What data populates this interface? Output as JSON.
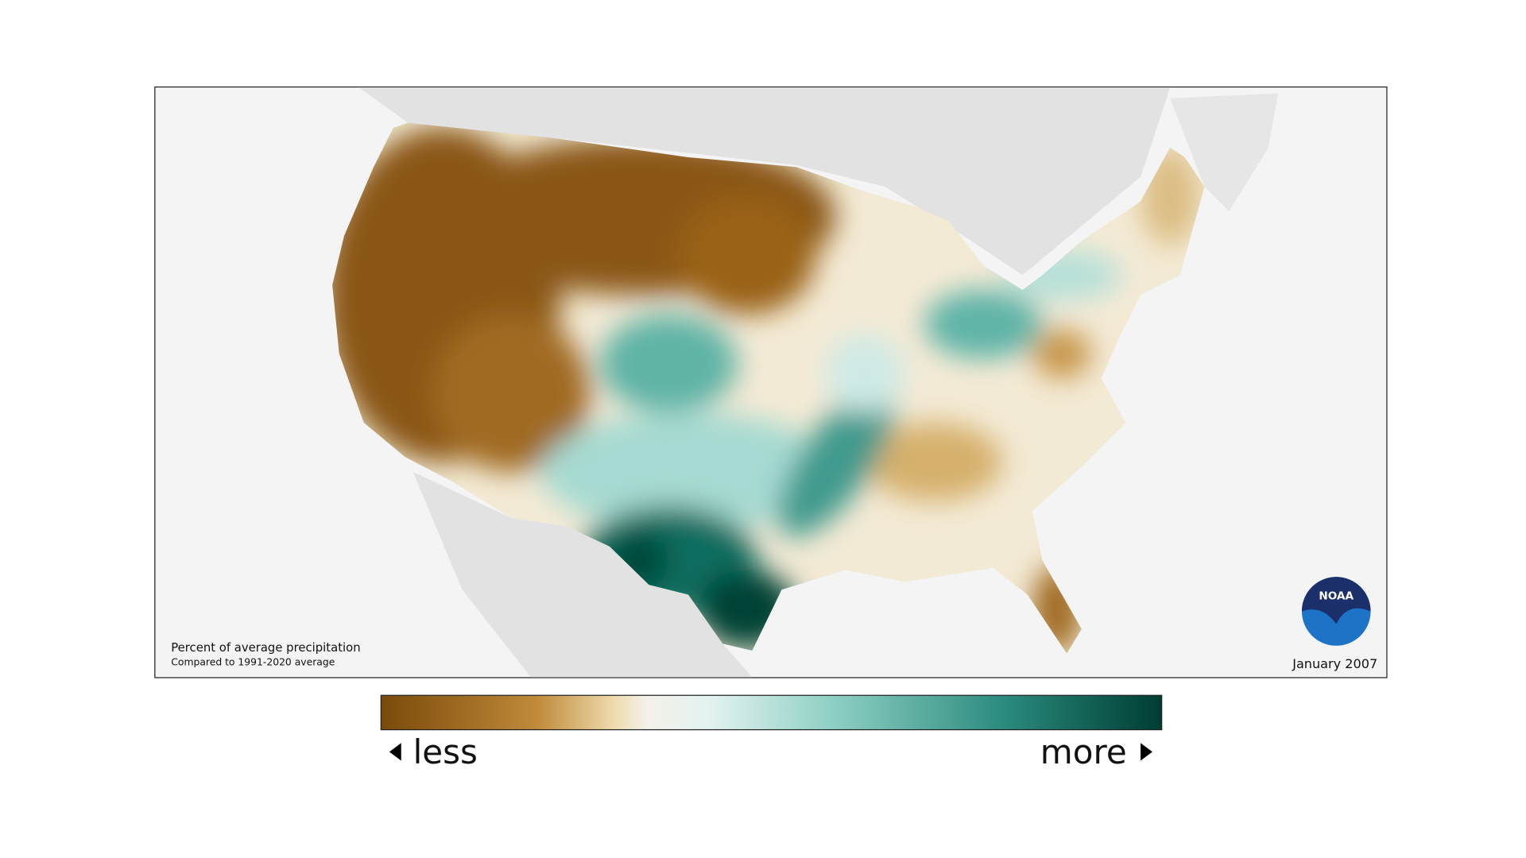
{
  "map": {
    "caption": {
      "title": "Percent of average precipitation",
      "subtitle": "Compared to 1991-2020 average"
    },
    "date": "January 2007",
    "logo": "NOAA"
  },
  "legend": {
    "low": "less",
    "high": "more"
  }
}
